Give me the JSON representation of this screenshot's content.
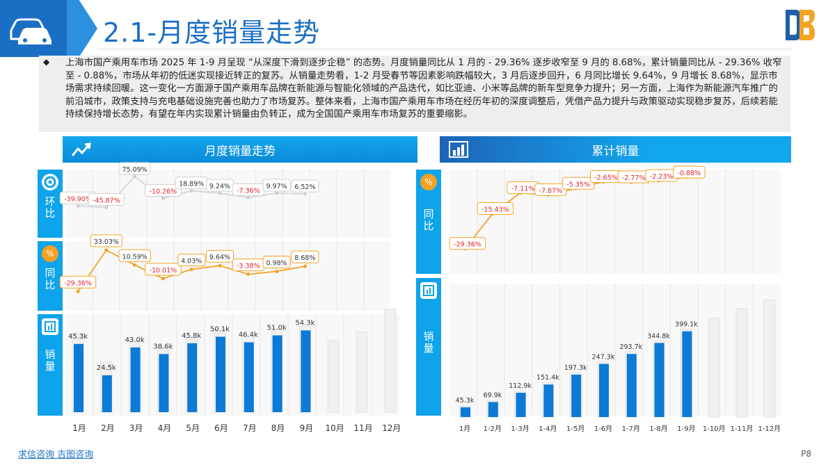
{
  "header": {
    "title": "2.1-月度销量走势"
  },
  "intro": {
    "text": "上海市国产乘用车市场 2025 年 1-9 月呈现 “从深度下滑到逐步企稳” 的态势。月度销量同比从 1 月的 - 29.36% 逐步收窄至 9 月的 8.68%，累计销量同比从 - 29.36% 收窄至 - 0.88%，市场从年初的低迷实现接近转正的复苏。从销量走势看，1-2 月受春节等因素影响跌幅较大，3 月后逐步回升，6 月同比增长 9.64%，9 月增长 8.68%，显示市场需求持续回暖。这一变化一方面源于国产乘用车品牌在新能源与智能化领域的产品迭代，如比亚迪、小米等品牌的新车型竞争力提升；另一方面，上海作为新能源汽车推广的前沿城市，政策支持与充电基础设施完善也助力了市场复苏。整体来看，上海市国产乘用车市场在经历年初的深度调整后，凭借产品力提升与政策驱动实现稳步复苏，后续若能持续保持增长态势，有望在年内实现累计销量由负转正，成为全国国产乘用车市场复苏的重要缩影。"
  },
  "left_panel": {
    "title": "月度销量走势",
    "tabs": {
      "mom": "环比",
      "yoy": "同比",
      "vol": "销量"
    }
  },
  "right_panel": {
    "title": "累计销量",
    "tabs": {
      "yoy": "同比",
      "vol": "销量"
    }
  },
  "footer": {
    "left": "求信咨询 吉图咨询",
    "page": "P8"
  },
  "colors": {
    "accent": "#12a6ec",
    "bar": "#0c7ad6",
    "line": "#f4a223",
    "neg": "#e0262a"
  },
  "chart_data": [
    {
      "type": "line",
      "name": "环比",
      "categories": [
        "1月",
        "2月",
        "3月",
        "4月",
        "5月",
        "6月",
        "7月",
        "8月",
        "9月"
      ],
      "values": [
        -39.9,
        -45.87,
        75.09,
        -10.26,
        18.89,
        9.24,
        -7.36,
        9.97,
        6.52
      ],
      "labels": [
        "-39.90%",
        "-45.87%",
        "75.09%",
        "-10.26%",
        "18.89%",
        "9.24%",
        "-7.36%",
        "9.97%",
        "6.52%"
      ]
    },
    {
      "type": "line",
      "name": "同比",
      "categories": [
        "1月",
        "2月",
        "3月",
        "4月",
        "5月",
        "6月",
        "7月",
        "8月",
        "9月"
      ],
      "values": [
        -29.36,
        33.03,
        10.59,
        -10.01,
        4.03,
        9.64,
        -3.38,
        0.98,
        8.68
      ],
      "labels": [
        "-29.36%",
        "33.03%",
        "10.59%",
        "-10.01%",
        "4.03%",
        "9.64%",
        "-3.38%",
        "0.98%",
        "8.68%"
      ]
    },
    {
      "type": "bar",
      "name": "销量",
      "categories": [
        "1月",
        "2月",
        "3月",
        "4月",
        "5月",
        "6月",
        "7月",
        "8月",
        "9月",
        "10月",
        "11月",
        "12月"
      ],
      "values": [
        45.3,
        24.5,
        43.0,
        38.6,
        45.8,
        50.1,
        46.4,
        51.0,
        54.3,
        null,
        null,
        null
      ],
      "labels": [
        "45.3k",
        "24.5k",
        "43.0k",
        "38.6k",
        "45.8k",
        "50.1k",
        "46.4k",
        "51.0k",
        "54.3k",
        "",
        "",
        ""
      ],
      "unit": "k"
    },
    {
      "type": "line",
      "name": "累计同比",
      "categories": [
        "1月",
        "1-2月",
        "1-3月",
        "1-4月",
        "1-5月",
        "1-6月",
        "1-7月",
        "1-8月",
        "1-9月"
      ],
      "values": [
        -29.36,
        -15.43,
        -7.11,
        -7.87,
        -5.35,
        -2.65,
        -2.77,
        -2.23,
        -0.88
      ],
      "labels": [
        "-29.36%",
        "-15.43%",
        "-7.11%",
        "-7.87%",
        "-5.35%",
        "-2.65%",
        "-2.77%",
        "-2.23%",
        "-0.88%"
      ]
    },
    {
      "type": "bar",
      "name": "累计销量",
      "categories": [
        "1月",
        "1-2月",
        "1-3月",
        "1-4月",
        "1-5月",
        "1-6月",
        "1-7月",
        "1-8月",
        "1-9月",
        "1-10月",
        "1-11月",
        "1-12月"
      ],
      "values": [
        45.3,
        69.9,
        112.9,
        151.4,
        197.3,
        247.3,
        293.7,
        344.8,
        399.1,
        null,
        null,
        null
      ],
      "labels": [
        "45.3k",
        "69.9k",
        "112.9k",
        "151.4k",
        "197.3k",
        "247.3k",
        "293.7k",
        "344.8k",
        "399.1k",
        "",
        "",
        ""
      ],
      "unit": "k"
    }
  ]
}
